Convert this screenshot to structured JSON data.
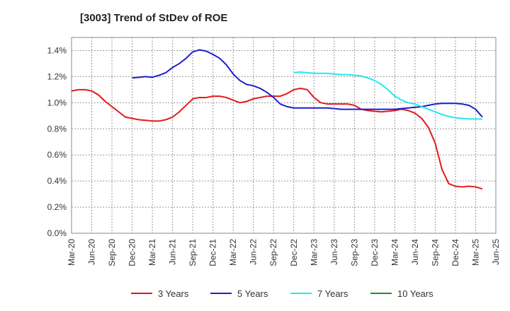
{
  "chart_data": {
    "type": "line",
    "title": "[3003]  Trend of StDev of ROE",
    "xlabel": "",
    "ylabel": "",
    "ylim": [
      0,
      1.5
    ],
    "x_range": [
      "2020-03",
      "2025-06"
    ],
    "y_ticks": [
      "0.0%",
      "0.2%",
      "0.4%",
      "0.6%",
      "0.8%",
      "1.0%",
      "1.2%",
      "1.4%"
    ],
    "x_ticks": [
      "Mar-20",
      "Jun-20",
      "Sep-20",
      "Dec-20",
      "Mar-21",
      "Jun-21",
      "Sep-21",
      "Dec-21",
      "Mar-22",
      "Jun-22",
      "Sep-22",
      "Dec-22",
      "Mar-23",
      "Jun-23",
      "Sep-23",
      "Dec-23",
      "Mar-24",
      "Jun-24",
      "Sep-24",
      "Dec-24",
      "Mar-25",
      "Jun-25"
    ],
    "grid": true,
    "legend_position": "bottom",
    "series": [
      {
        "name": "3 Years",
        "color": "#e31a1c",
        "points": [
          [
            "2020-03",
            1.09
          ],
          [
            "2020-04",
            1.1
          ],
          [
            "2020-05",
            1.1
          ],
          [
            "2020-06",
            1.09
          ],
          [
            "2020-07",
            1.06
          ],
          [
            "2020-08",
            1.01
          ],
          [
            "2020-09",
            0.97
          ],
          [
            "2020-10",
            0.93
          ],
          [
            "2020-11",
            0.89
          ],
          [
            "2020-12",
            0.88
          ],
          [
            "2021-01",
            0.87
          ],
          [
            "2021-02",
            0.865
          ],
          [
            "2021-03",
            0.86
          ],
          [
            "2021-04",
            0.86
          ],
          [
            "2021-05",
            0.87
          ],
          [
            "2021-06",
            0.89
          ],
          [
            "2021-07",
            0.93
          ],
          [
            "2021-08",
            0.98
          ],
          [
            "2021-09",
            1.03
          ],
          [
            "2021-10",
            1.04
          ],
          [
            "2021-11",
            1.04
          ],
          [
            "2021-12",
            1.05
          ],
          [
            "2022-01",
            1.05
          ],
          [
            "2022-02",
            1.04
          ],
          [
            "2022-03",
            1.02
          ],
          [
            "2022-04",
            1.0
          ],
          [
            "2022-05",
            1.01
          ],
          [
            "2022-06",
            1.03
          ],
          [
            "2022-07",
            1.04
          ],
          [
            "2022-08",
            1.05
          ],
          [
            "2022-09",
            1.05
          ],
          [
            "2022-10",
            1.05
          ],
          [
            "2022-11",
            1.07
          ],
          [
            "2022-12",
            1.1
          ],
          [
            "2023-01",
            1.11
          ],
          [
            "2023-02",
            1.1
          ],
          [
            "2023-03",
            1.04
          ],
          [
            "2023-04",
            1.0
          ],
          [
            "2023-05",
            0.99
          ],
          [
            "2023-06",
            0.99
          ],
          [
            "2023-07",
            0.99
          ],
          [
            "2023-08",
            0.99
          ],
          [
            "2023-09",
            0.98
          ],
          [
            "2023-10",
            0.95
          ],
          [
            "2023-11",
            0.94
          ],
          [
            "2023-12",
            0.935
          ],
          [
            "2024-01",
            0.93
          ],
          [
            "2024-02",
            0.935
          ],
          [
            "2024-03",
            0.94
          ],
          [
            "2024-04",
            0.95
          ],
          [
            "2024-05",
            0.94
          ],
          [
            "2024-06",
            0.92
          ],
          [
            "2024-07",
            0.88
          ],
          [
            "2024-08",
            0.81
          ],
          [
            "2024-09",
            0.69
          ],
          [
            "2024-10",
            0.49
          ],
          [
            "2024-11",
            0.38
          ],
          [
            "2024-12",
            0.36
          ],
          [
            "2025-01",
            0.355
          ],
          [
            "2025-02",
            0.36
          ],
          [
            "2025-03",
            0.355
          ],
          [
            "2025-04",
            0.34
          ]
        ]
      },
      {
        "name": "5 Years",
        "color": "#1f1fcc",
        "points": [
          [
            "2020-12",
            1.19
          ],
          [
            "2021-01",
            1.195
          ],
          [
            "2021-02",
            1.2
          ],
          [
            "2021-03",
            1.195
          ],
          [
            "2021-04",
            1.21
          ],
          [
            "2021-05",
            1.23
          ],
          [
            "2021-06",
            1.27
          ],
          [
            "2021-07",
            1.3
          ],
          [
            "2021-08",
            1.34
          ],
          [
            "2021-09",
            1.39
          ],
          [
            "2021-10",
            1.405
          ],
          [
            "2021-11",
            1.395
          ],
          [
            "2021-12",
            1.37
          ],
          [
            "2022-01",
            1.34
          ],
          [
            "2022-02",
            1.29
          ],
          [
            "2022-03",
            1.22
          ],
          [
            "2022-04",
            1.17
          ],
          [
            "2022-05",
            1.14
          ],
          [
            "2022-06",
            1.13
          ],
          [
            "2022-07",
            1.11
          ],
          [
            "2022-08",
            1.08
          ],
          [
            "2022-09",
            1.04
          ],
          [
            "2022-10",
            0.99
          ],
          [
            "2022-11",
            0.97
          ],
          [
            "2022-12",
            0.96
          ],
          [
            "2023-01",
            0.96
          ],
          [
            "2023-02",
            0.96
          ],
          [
            "2023-03",
            0.96
          ],
          [
            "2023-04",
            0.96
          ],
          [
            "2023-05",
            0.96
          ],
          [
            "2023-06",
            0.955
          ],
          [
            "2023-07",
            0.95
          ],
          [
            "2023-08",
            0.95
          ],
          [
            "2023-09",
            0.95
          ],
          [
            "2023-10",
            0.95
          ],
          [
            "2023-11",
            0.95
          ],
          [
            "2023-12",
            0.95
          ],
          [
            "2024-01",
            0.95
          ],
          [
            "2024-02",
            0.95
          ],
          [
            "2024-03",
            0.95
          ],
          [
            "2024-04",
            0.955
          ],
          [
            "2024-05",
            0.96
          ],
          [
            "2024-06",
            0.965
          ],
          [
            "2024-07",
            0.97
          ],
          [
            "2024-08",
            0.98
          ],
          [
            "2024-09",
            0.99
          ],
          [
            "2024-10",
            0.995
          ],
          [
            "2024-11",
            0.995
          ],
          [
            "2024-12",
            0.995
          ],
          [
            "2025-01",
            0.99
          ],
          [
            "2025-02",
            0.98
          ],
          [
            "2025-03",
            0.95
          ],
          [
            "2025-04",
            0.89
          ]
        ]
      },
      {
        "name": "7 Years",
        "color": "#22e8f0",
        "points": [
          [
            "2022-12",
            1.23
          ],
          [
            "2023-01",
            1.235
          ],
          [
            "2023-02",
            1.23
          ],
          [
            "2023-03",
            1.225
          ],
          [
            "2023-04",
            1.225
          ],
          [
            "2023-05",
            1.225
          ],
          [
            "2023-06",
            1.22
          ],
          [
            "2023-07",
            1.215
          ],
          [
            "2023-08",
            1.215
          ],
          [
            "2023-09",
            1.21
          ],
          [
            "2023-10",
            1.205
          ],
          [
            "2023-11",
            1.19
          ],
          [
            "2023-12",
            1.17
          ],
          [
            "2024-01",
            1.14
          ],
          [
            "2024-02",
            1.1
          ],
          [
            "2024-03",
            1.05
          ],
          [
            "2024-04",
            1.02
          ],
          [
            "2024-05",
            1.0
          ],
          [
            "2024-06",
            0.99
          ],
          [
            "2024-07",
            0.97
          ],
          [
            "2024-08",
            0.95
          ],
          [
            "2024-09",
            0.93
          ],
          [
            "2024-10",
            0.91
          ],
          [
            "2024-11",
            0.895
          ],
          [
            "2024-12",
            0.885
          ],
          [
            "2025-01",
            0.88
          ],
          [
            "2025-02",
            0.875
          ],
          [
            "2025-03",
            0.875
          ],
          [
            "2025-04",
            0.875
          ]
        ]
      },
      {
        "name": "10 Years",
        "color": "#2a8a2a",
        "points": []
      }
    ]
  }
}
